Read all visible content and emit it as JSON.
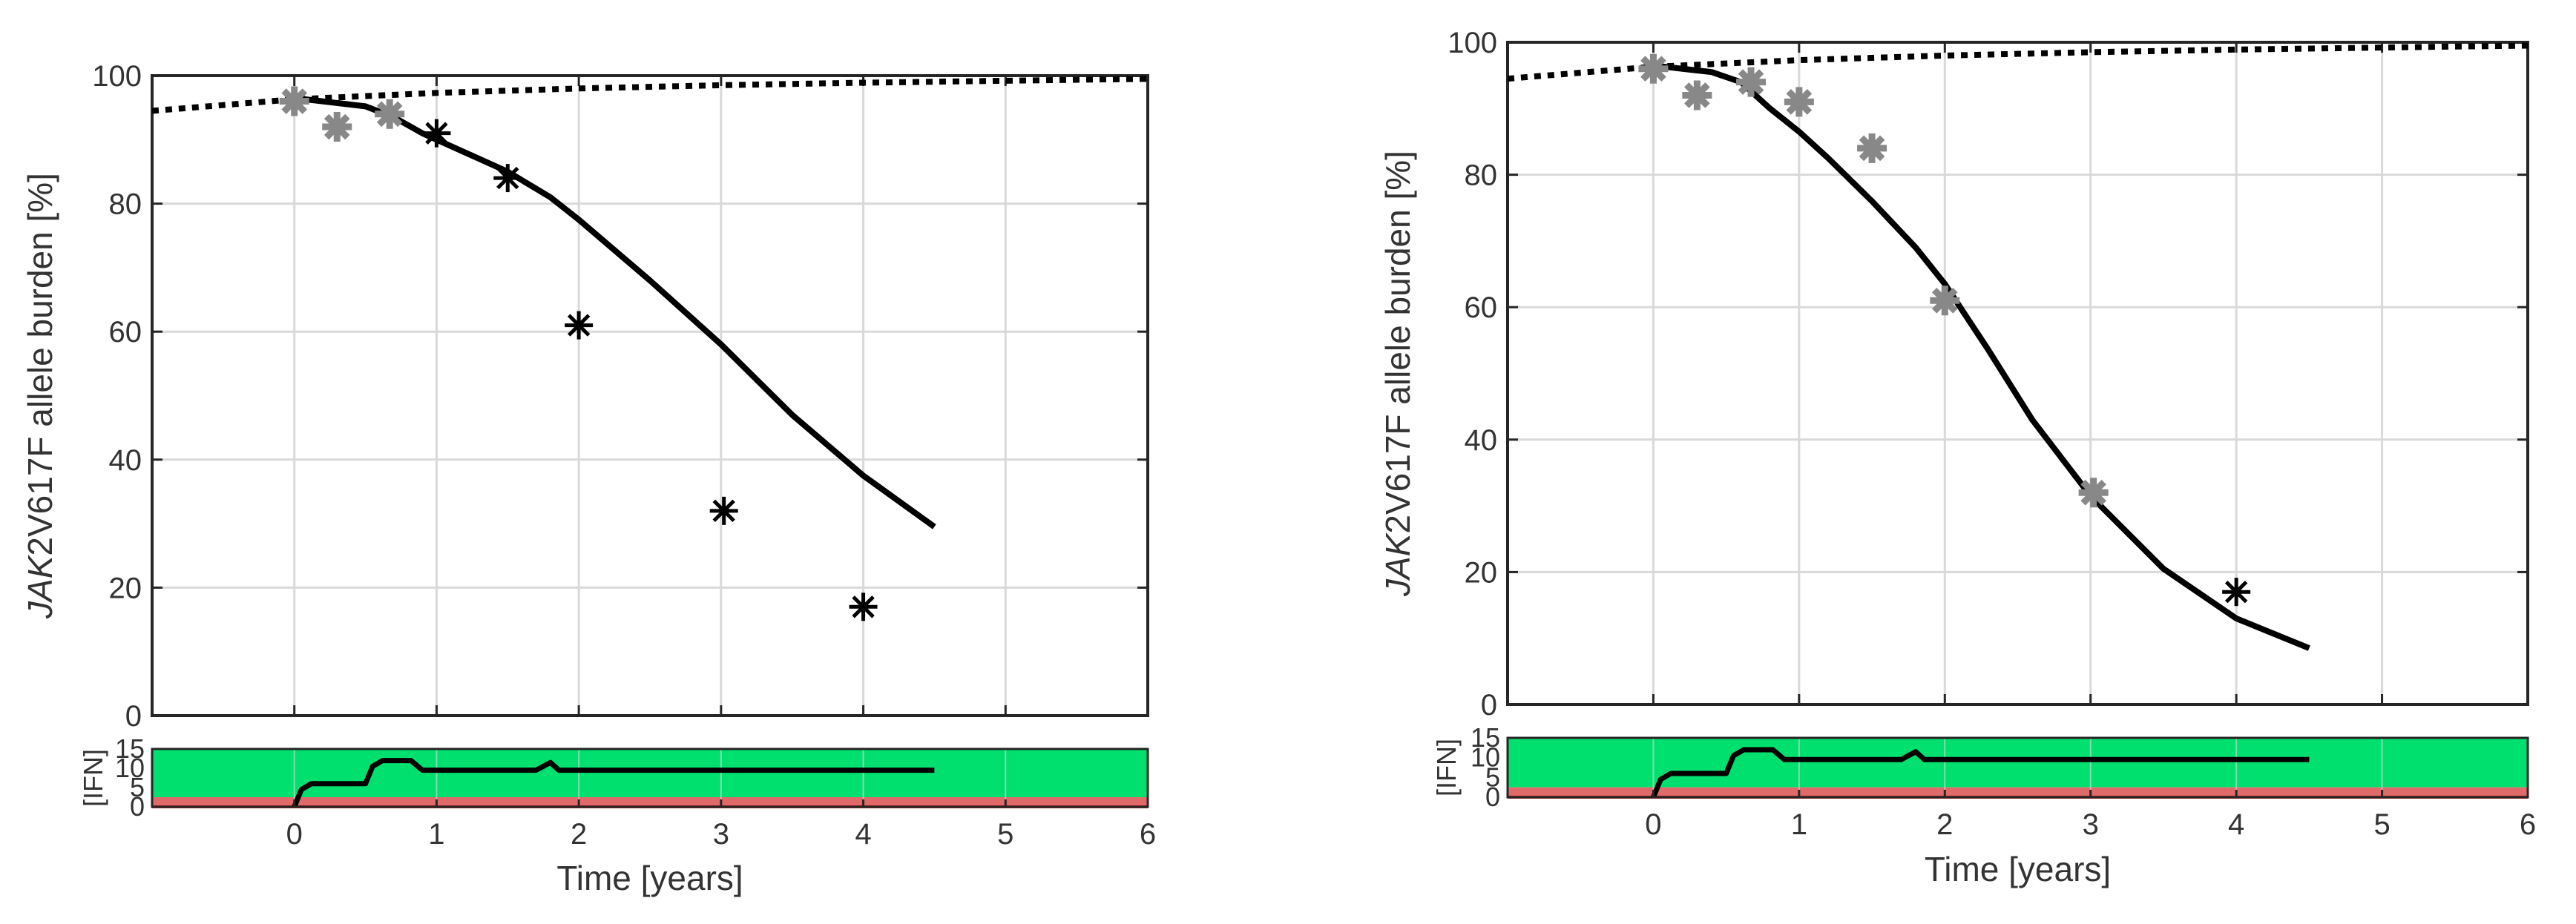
{
  "colors": {
    "text": "#333333",
    "grid": "#d9d9d9",
    "model": "#000000",
    "gray_marker": "#888888",
    "black_marker": "#000000",
    "therapeutic_band": "#00e06e",
    "subtherapeutic_band": "#e06a6a",
    "subtherapeutic_edge": "#c42020"
  },
  "chart_data": [
    {
      "type": "line",
      "panel": "left",
      "ylabel_italic": "JAK",
      "ylabel_rest": "2V617F allele burden [%]",
      "xlabel": "Time [years]",
      "xlim": [
        -1,
        6
      ],
      "ylim": [
        0,
        100
      ],
      "xticks": [
        "0",
        "1",
        "2",
        "3",
        "4",
        "5",
        "6"
      ],
      "yticks": [
        "0",
        "20",
        "40",
        "60",
        "80",
        "100"
      ],
      "grid": true,
      "series": [
        {
          "name": "model",
          "style": "solid",
          "x": [
            0,
            0.5,
            0.7,
            0.9,
            1.2,
            1.5,
            1.8,
            2.0,
            2.5,
            3.0,
            3.5,
            4.0,
            4.5
          ],
          "y": [
            96.5,
            95.2,
            93.5,
            91.0,
            88.0,
            85.0,
            81.0,
            77.5,
            68.0,
            58.0,
            47.0,
            37.5,
            29.5
          ]
        },
        {
          "name": "untreated",
          "style": "dotted",
          "x": [
            -1,
            0,
            1,
            2,
            3,
            4,
            5,
            6
          ],
          "y": [
            94.5,
            96.3,
            97.3,
            98.0,
            98.5,
            98.9,
            99.2,
            99.5
          ]
        },
        {
          "name": "measurements-gray",
          "style": "marker-gray",
          "x": [
            0,
            0.3,
            0.67
          ],
          "y": [
            96,
            92,
            94
          ]
        },
        {
          "name": "measurements-black",
          "style": "marker-black",
          "x": [
            1,
            1.5,
            2,
            3.02,
            4
          ],
          "y": [
            91,
            84,
            61,
            32,
            17
          ]
        }
      ],
      "ifn_panel": {
        "ylabel": "[IFN]",
        "yticks": [
          "0",
          "5",
          "10",
          "15"
        ],
        "ylim": [
          0,
          15
        ],
        "band_subtherapeutic": [
          0,
          2.5
        ],
        "band_therapeutic": [
          2.5,
          15
        ],
        "dose": {
          "x": [
            0,
            0.05,
            0.12,
            0.5,
            0.55,
            0.62,
            0.82,
            0.9,
            1.0,
            1.7,
            1.75,
            1.8,
            1.86,
            1.92,
            4.5
          ],
          "y": [
            0,
            4.5,
            6,
            6,
            10.5,
            12,
            12,
            9.5,
            9.5,
            9.5,
            10.5,
            11.5,
            9.5,
            9.5,
            9.5
          ]
        }
      }
    },
    {
      "type": "line",
      "panel": "right",
      "ylabel_italic": "JAK",
      "ylabel_rest": "2V617F allele burden [%]",
      "xlabel": "Time [years]",
      "xlim": [
        -1,
        6
      ],
      "ylim": [
        0,
        100
      ],
      "xticks": [
        "0",
        "1",
        "2",
        "3",
        "4",
        "5",
        "6"
      ],
      "yticks": [
        "0",
        "20",
        "40",
        "60",
        "80",
        "100"
      ],
      "grid": true,
      "series": [
        {
          "name": "model",
          "style": "solid",
          "x": [
            0,
            0.4,
            0.6,
            0.8,
            1.0,
            1.2,
            1.5,
            1.8,
            2.0,
            2.3,
            2.6,
            3.0,
            3.5,
            4.0,
            4.5
          ],
          "y": [
            96.5,
            95.5,
            94.0,
            90.0,
            86.5,
            82.5,
            76.0,
            69.0,
            63.5,
            53.5,
            43.0,
            31.5,
            20.5,
            13.0,
            8.5
          ]
        },
        {
          "name": "untreated",
          "style": "dotted",
          "x": [
            -1,
            0,
            1,
            2,
            3,
            4,
            5,
            6
          ],
          "y": [
            94.5,
            96.3,
            97.3,
            98.0,
            98.5,
            98.9,
            99.2,
            99.5
          ]
        },
        {
          "name": "measurements-gray",
          "style": "marker-gray",
          "x": [
            0,
            0.3,
            0.67,
            1,
            1.5,
            2,
            3.02
          ],
          "y": [
            96,
            92,
            94,
            91,
            84,
            61,
            32
          ]
        },
        {
          "name": "measurements-black",
          "style": "marker-black",
          "x": [
            4
          ],
          "y": [
            17
          ]
        }
      ],
      "ifn_panel": {
        "ylabel": "[IFN]",
        "yticks": [
          "0",
          "5",
          "10",
          "15"
        ],
        "ylim": [
          0,
          15
        ],
        "band_subtherapeutic": [
          0,
          2.5
        ],
        "band_therapeutic": [
          2.5,
          15
        ],
        "dose": {
          "x": [
            0,
            0.05,
            0.12,
            0.5,
            0.55,
            0.62,
            0.82,
            0.9,
            1.0,
            1.7,
            1.75,
            1.8,
            1.86,
            1.92,
            4.5
          ],
          "y": [
            0,
            4.5,
            6,
            6,
            10.5,
            12,
            12,
            9.5,
            9.5,
            9.5,
            10.5,
            11.5,
            9.5,
            9.5,
            9.5
          ]
        }
      }
    }
  ]
}
